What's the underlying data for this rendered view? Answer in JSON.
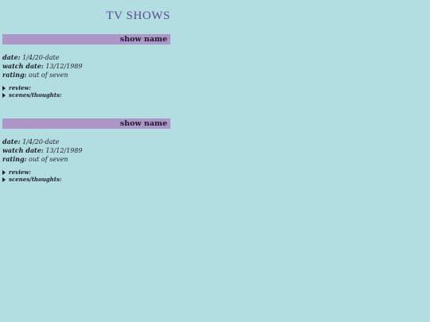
{
  "page": {
    "title": "TV SHOWS"
  },
  "colors": {
    "background": "#b2dde1",
    "bar": "#ad97c9",
    "title": "#5a4a93"
  },
  "entries": [
    {
      "show_name": "show name",
      "date_label": "date:",
      "date_value": "1/4/20-date",
      "watch_label": "watch date:",
      "watch_value": "13/12/1989",
      "rating_label": "rating:",
      "rating_value": "out of seven",
      "review_label": "review:",
      "scenes_label": "scenes/thoughts:"
    },
    {
      "show_name": "show name",
      "date_label": "date:",
      "date_value": "1/4/20-date",
      "watch_label": "watch date:",
      "watch_value": "13/12/1989",
      "rating_label": "rating:",
      "rating_value": "out of seven",
      "review_label": "review:",
      "scenes_label": "scenes/thoughts:"
    }
  ]
}
